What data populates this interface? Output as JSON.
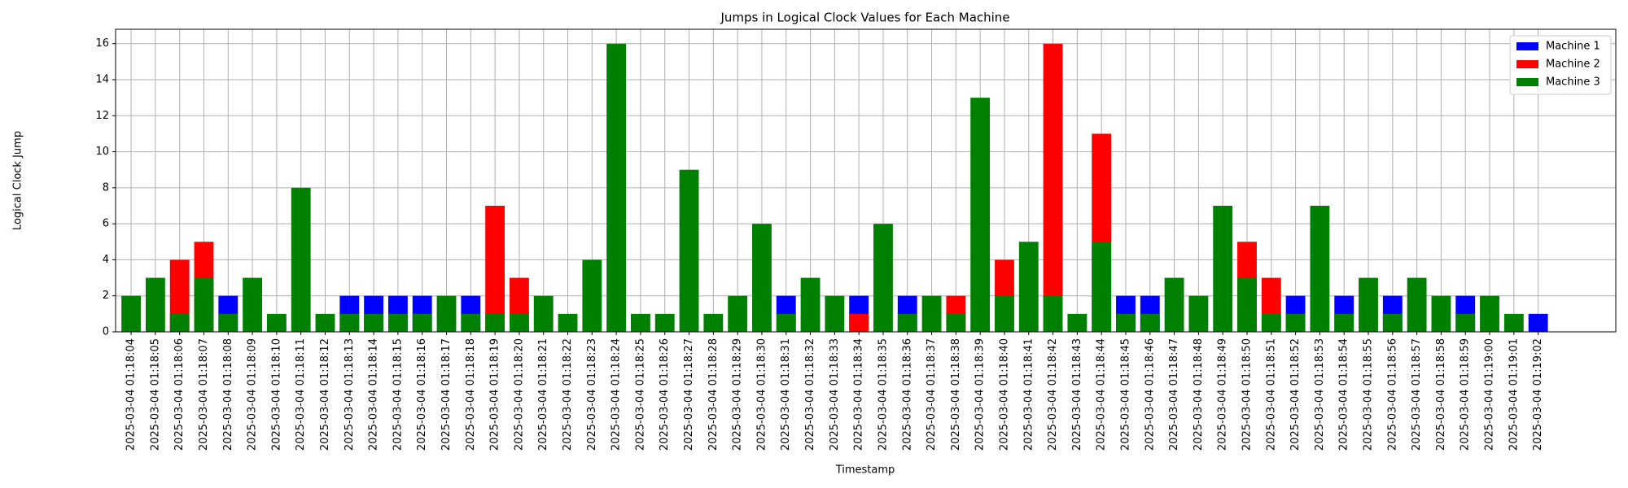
{
  "chart_data": {
    "type": "bar",
    "title": "Jumps in Logical Clock Values for Each Machine",
    "x_label": "Timestamp",
    "y_label": "Logical Clock Jump",
    "categories": [
      "2025-03-04 01:18:04",
      "2025-03-04 01:18:05",
      "2025-03-04 01:18:06",
      "2025-03-04 01:18:07",
      "2025-03-04 01:18:08",
      "2025-03-04 01:18:09",
      "2025-03-04 01:18:10",
      "2025-03-04 01:18:11",
      "2025-03-04 01:18:12",
      "2025-03-04 01:18:13",
      "2025-03-04 01:18:14",
      "2025-03-04 01:18:15",
      "2025-03-04 01:18:16",
      "2025-03-04 01:18:17",
      "2025-03-04 01:18:18",
      "2025-03-04 01:18:19",
      "2025-03-04 01:18:20",
      "2025-03-04 01:18:21",
      "2025-03-04 01:18:22",
      "2025-03-04 01:18:23",
      "2025-03-04 01:18:24",
      "2025-03-04 01:18:25",
      "2025-03-04 01:18:26",
      "2025-03-04 01:18:27",
      "2025-03-04 01:18:28",
      "2025-03-04 01:18:29",
      "2025-03-04 01:18:30",
      "2025-03-04 01:18:31",
      "2025-03-04 01:18:32",
      "2025-03-04 01:18:33",
      "2025-03-04 01:18:34",
      "2025-03-04 01:18:35",
      "2025-03-04 01:18:36",
      "2025-03-04 01:18:37",
      "2025-03-04 01:18:38",
      "2025-03-04 01:18:39",
      "2025-03-04 01:18:40",
      "2025-03-04 01:18:41",
      "2025-03-04 01:18:42",
      "2025-03-04 01:18:43",
      "2025-03-04 01:18:44",
      "2025-03-04 01:18:45",
      "2025-03-04 01:18:46",
      "2025-03-04 01:18:47",
      "2025-03-04 01:18:48",
      "2025-03-04 01:18:49",
      "2025-03-04 01:18:50",
      "2025-03-04 01:18:51",
      "2025-03-04 01:18:52",
      "2025-03-04 01:18:53",
      "2025-03-04 01:18:54",
      "2025-03-04 01:18:55",
      "2025-03-04 01:18:56",
      "2025-03-04 01:18:57",
      "2025-03-04 01:18:58",
      "2025-03-04 01:18:59",
      "2025-03-04 01:19:00",
      "2025-03-04 01:19:01",
      "2025-03-04 01:19:02"
    ],
    "series": [
      {
        "name": "Machine 1",
        "color": "#0000ff",
        "values": [
          null,
          null,
          null,
          null,
          2,
          null,
          null,
          null,
          null,
          2,
          2,
          2,
          2,
          null,
          2,
          null,
          null,
          null,
          null,
          null,
          null,
          null,
          null,
          null,
          null,
          null,
          null,
          2,
          null,
          null,
          2,
          null,
          2,
          null,
          null,
          null,
          null,
          null,
          null,
          null,
          null,
          2,
          2,
          null,
          null,
          null,
          null,
          null,
          2,
          null,
          2,
          null,
          2,
          null,
          null,
          2,
          null,
          null,
          1
        ]
      },
      {
        "name": "Machine 2",
        "color": "#ff0000",
        "values": [
          null,
          null,
          4,
          5,
          null,
          null,
          null,
          null,
          null,
          null,
          null,
          null,
          null,
          null,
          null,
          7,
          3,
          null,
          null,
          null,
          null,
          null,
          null,
          null,
          null,
          null,
          null,
          null,
          null,
          null,
          1,
          null,
          null,
          null,
          2,
          null,
          4,
          null,
          16,
          null,
          11,
          null,
          null,
          null,
          null,
          null,
          5,
          3,
          null,
          null,
          null,
          null,
          null,
          null,
          null,
          null,
          null,
          null,
          null
        ]
      },
      {
        "name": "Machine 3",
        "color": "#008000",
        "values": [
          2,
          3,
          1,
          3,
          1,
          3,
          1,
          8,
          1,
          1,
          1,
          1,
          1,
          2,
          1,
          1,
          1,
          2,
          1,
          4,
          16,
          1,
          1,
          9,
          1,
          2,
          6,
          1,
          3,
          2,
          null,
          6,
          1,
          2,
          1,
          13,
          2,
          5,
          2,
          1,
          5,
          1,
          1,
          3,
          2,
          7,
          3,
          1,
          1,
          7,
          1,
          3,
          1,
          3,
          2,
          1,
          2,
          1,
          null
        ]
      }
    ],
    "ylim": [
      0,
      16.8
    ],
    "yticks": [
      0,
      2,
      4,
      6,
      8,
      10,
      12,
      14,
      16
    ],
    "grid": true,
    "legend": "upper right"
  }
}
